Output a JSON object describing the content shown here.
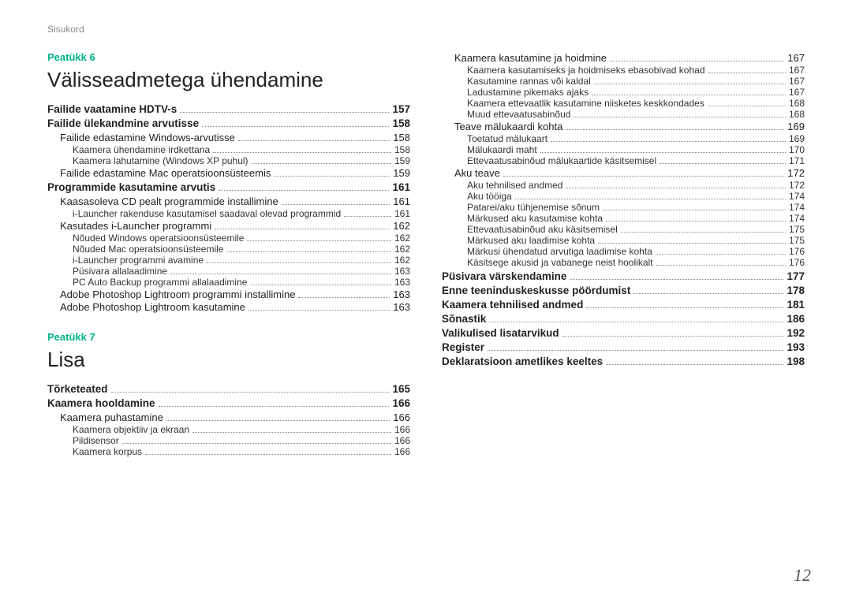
{
  "header_label": "Sisukord",
  "page_number": "12",
  "colors": {
    "accent": "#00b488",
    "text": "#222222",
    "muted": "#888888",
    "background": "#ffffff"
  },
  "left_column": [
    {
      "type": "chapter_label",
      "text": "Peatükk 6"
    },
    {
      "type": "chapter_title",
      "text": "Välisseadmetega ühendamine"
    },
    {
      "type": "row",
      "level": 0,
      "label": "Failide vaatamine HDTV-s",
      "page": "157"
    },
    {
      "type": "row",
      "level": 0,
      "label": "Failide ülekandmine arvutisse",
      "page": "158"
    },
    {
      "type": "row",
      "level": 1,
      "label": "Failide edastamine Windows-arvutisse",
      "page": "158"
    },
    {
      "type": "row",
      "level": 2,
      "label": "Kaamera ühendamine irdkettana",
      "page": "158"
    },
    {
      "type": "row",
      "level": 2,
      "label": "Kaamera lahutamine (Windows XP puhul)",
      "page": "159"
    },
    {
      "type": "row",
      "level": 1,
      "label": "Failide edastamine Mac operatsioonsüsteemis",
      "page": "159"
    },
    {
      "type": "row",
      "level": 0,
      "label": "Programmide kasutamine arvutis",
      "page": "161"
    },
    {
      "type": "row",
      "level": 1,
      "label": "Kaasasoleva CD pealt programmide installimine",
      "page": "161"
    },
    {
      "type": "row",
      "level": 2,
      "label": "i-Launcher rakenduse kasutamisel saadaval olevad programmid",
      "page": "161"
    },
    {
      "type": "row",
      "level": 1,
      "label": "Kasutades i-Launcher programmi",
      "page": "162"
    },
    {
      "type": "row",
      "level": 2,
      "label": "Nõuded Windows operatsioonsüsteemile",
      "page": "162"
    },
    {
      "type": "row",
      "level": 2,
      "label": "Nõuded Mac operatsioonsüsteemile",
      "page": "162"
    },
    {
      "type": "row",
      "level": 2,
      "label": "i-Launcher programmi avamine",
      "page": "162"
    },
    {
      "type": "row",
      "level": 2,
      "label": "Püsivara allalaadimine",
      "page": "163"
    },
    {
      "type": "row",
      "level": 2,
      "label": "PC Auto Backup programmi allalaadimine",
      "page": "163"
    },
    {
      "type": "row",
      "level": 1,
      "label": "Adobe Photoshop Lightroom programmi installimine",
      "page": "163"
    },
    {
      "type": "row",
      "level": 1,
      "label": "Adobe Photoshop Lightroom kasutamine",
      "page": "163"
    },
    {
      "type": "gap"
    },
    {
      "type": "chapter_label",
      "text": "Peatükk 7"
    },
    {
      "type": "chapter_title",
      "text": "Lisa"
    },
    {
      "type": "row",
      "level": 0,
      "label": "Tõrketeated",
      "page": "165"
    },
    {
      "type": "row",
      "level": 0,
      "label": "Kaamera hooldamine",
      "page": "166"
    },
    {
      "type": "row",
      "level": 1,
      "label": "Kaamera puhastamine",
      "page": "166"
    },
    {
      "type": "row",
      "level": 2,
      "label": "Kaamera objektiiv ja ekraan",
      "page": "166"
    },
    {
      "type": "row",
      "level": 2,
      "label": "Pildisensor",
      "page": "166"
    },
    {
      "type": "row",
      "level": 2,
      "label": "Kaamera korpus",
      "page": "166"
    }
  ],
  "right_column": [
    {
      "type": "row",
      "level": 1,
      "label": "Kaamera kasutamine ja hoidmine",
      "page": "167"
    },
    {
      "type": "row",
      "level": 2,
      "label": "Kaamera kasutamiseks ja hoidmiseks ebasobivad kohad",
      "page": "167"
    },
    {
      "type": "row",
      "level": 2,
      "label": "Kasutamine rannas või kaldal",
      "page": "167"
    },
    {
      "type": "row",
      "level": 2,
      "label": "Ladustamine pikemaks ajaks",
      "page": "167"
    },
    {
      "type": "row",
      "level": 2,
      "label": "Kaamera ettevaatlik kasutamine niisketes keskkondades",
      "page": "168"
    },
    {
      "type": "row",
      "level": 2,
      "label": "Muud ettevaatusabinõud",
      "page": "168"
    },
    {
      "type": "row",
      "level": 1,
      "label": "Teave mälukaardi kohta",
      "page": "169"
    },
    {
      "type": "row",
      "level": 2,
      "label": "Toetatud mälukaart",
      "page": "169"
    },
    {
      "type": "row",
      "level": 2,
      "label": "Mälukaardi maht",
      "page": "170"
    },
    {
      "type": "row",
      "level": 2,
      "label": "Ettevaatusabinõud mälukaartide käsitsemisel",
      "page": "171"
    },
    {
      "type": "row",
      "level": 1,
      "label": "Aku teave",
      "page": "172"
    },
    {
      "type": "row",
      "level": 2,
      "label": "Aku tehnilised andmed",
      "page": "172"
    },
    {
      "type": "row",
      "level": 2,
      "label": "Aku tööiga",
      "page": "174"
    },
    {
      "type": "row",
      "level": 2,
      "label": "Patarei/aku tühjenemise sõnum",
      "page": "174"
    },
    {
      "type": "row",
      "level": 2,
      "label": "Märkused aku kasutamise kohta",
      "page": "174"
    },
    {
      "type": "row",
      "level": 2,
      "label": "Ettevaatusabinõud aku käsitsemisel",
      "page": "175"
    },
    {
      "type": "row",
      "level": 2,
      "label": "Märkused aku laadimise kohta",
      "page": "175"
    },
    {
      "type": "row",
      "level": 2,
      "label": "Märkusi ühendatud arvutiga laadimise kohta",
      "page": "176"
    },
    {
      "type": "row",
      "level": 2,
      "label": "Käsitsege akusid ja vabanege neist hoolikalt",
      "page": "176"
    },
    {
      "type": "row",
      "level": 0,
      "label": "Püsivara värskendamine",
      "page": "177"
    },
    {
      "type": "row",
      "level": 0,
      "label": "Enne teeninduskeskusse pöördumist",
      "page": "178"
    },
    {
      "type": "row",
      "level": 0,
      "label": "Kaamera tehnilised andmed",
      "page": "181"
    },
    {
      "type": "row",
      "level": 0,
      "label": "Sõnastik",
      "page": "186"
    },
    {
      "type": "row",
      "level": 0,
      "label": "Valikulised lisatarvikud",
      "page": "192"
    },
    {
      "type": "row",
      "level": 0,
      "label": "Register",
      "page": "193"
    },
    {
      "type": "row",
      "level": 0,
      "label": "Deklaratsioon ametlikes keeltes",
      "page": "198"
    }
  ]
}
